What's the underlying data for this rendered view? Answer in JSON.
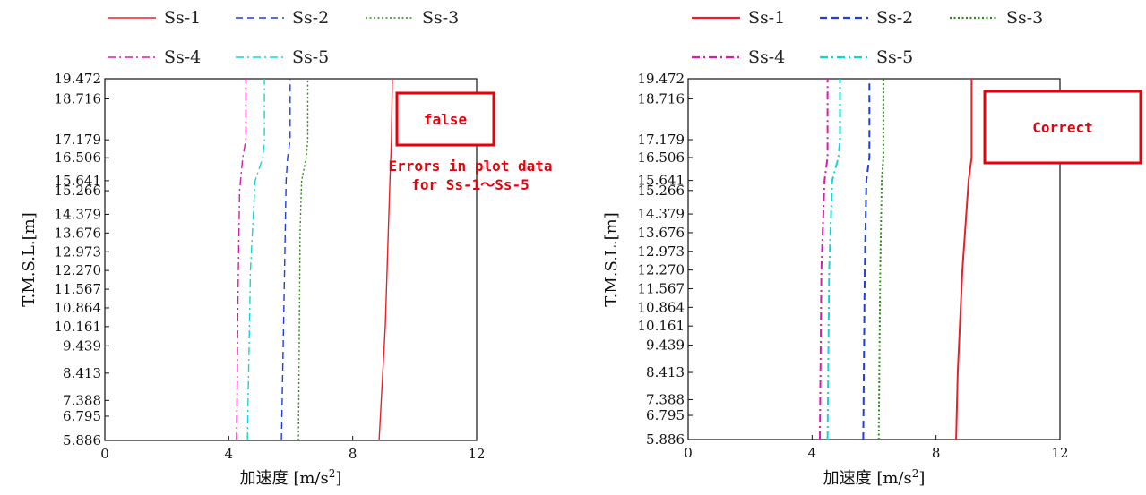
{
  "chart_data": [
    {
      "type": "line",
      "title": "",
      "xlabel_main": "加速度",
      "xlabel_unit": "[m/s",
      "xlabel_exp": "2",
      "xlabel_close": "]",
      "ylabel": "T.M.S.L.[m]",
      "xlim": [
        0,
        12
      ],
      "x_ticks": [
        0,
        4,
        8,
        12
      ],
      "ylim": [
        5.886,
        19.472
      ],
      "y_ticks": [
        19.472,
        18.716,
        17.179,
        16.506,
        15.641,
        15.266,
        14.379,
        13.676,
        12.973,
        12.27,
        11.567,
        10.864,
        10.161,
        9.439,
        8.413,
        7.388,
        6.795,
        5.886
      ],
      "y_tick_labels": [
        "19.472",
        "18.716",
        "17.179",
        "16.506",
        "15.641",
        "15.266",
        "14.379",
        "13.676",
        "12.973",
        "12.270",
        "11.567",
        "10.864",
        "10.161",
        "9.439",
        "8.413",
        "7.388",
        "6.795",
        "5.886"
      ],
      "grid": false,
      "legend": "top",
      "series": [
        {
          "name": "Ss-1",
          "color": "#e8202a",
          "style": "solid",
          "points": [
            [
              8.85,
              5.886
            ],
            [
              9.05,
              10.16
            ],
            [
              9.2,
              15.64
            ],
            [
              9.25,
              17.18
            ],
            [
              9.28,
              19.472
            ]
          ]
        },
        {
          "name": "Ss-2",
          "color": "#1f3fdc",
          "style": "dash",
          "points": [
            [
              5.7,
              5.886
            ],
            [
              5.8,
              12.27
            ],
            [
              5.85,
              15.64
            ],
            [
              5.9,
              16.51
            ],
            [
              5.98,
              17.18
            ],
            [
              5.98,
              19.472
            ]
          ]
        },
        {
          "name": "Ss-3",
          "color": "#2e8b1a",
          "style": "dot",
          "points": [
            [
              6.25,
              5.886
            ],
            [
              6.3,
              13.68
            ],
            [
              6.35,
              15.64
            ],
            [
              6.5,
              16.51
            ],
            [
              6.55,
              17.18
            ],
            [
              6.55,
              19.472
            ]
          ]
        },
        {
          "name": "Ss-4",
          "color": "#d81ba8",
          "style": "dashdot",
          "points": [
            [
              4.25,
              5.886
            ],
            [
              4.3,
              11.57
            ],
            [
              4.35,
              15.27
            ],
            [
              4.45,
              16.51
            ],
            [
              4.55,
              17.18
            ],
            [
              4.55,
              19.472
            ]
          ]
        },
        {
          "name": "Ss-5",
          "color": "#12d6d6",
          "style": "dashdot",
          "points": [
            [
              4.6,
              5.886
            ],
            [
              4.7,
              12.27
            ],
            [
              4.85,
              15.64
            ],
            [
              5.1,
              16.51
            ],
            [
              5.15,
              17.18
            ],
            [
              5.15,
              19.472
            ]
          ]
        }
      ],
      "annotations": {
        "box_label": "false",
        "note_line1": "Errors in plot data",
        "note_line2": "for Ss-1～Ss-5"
      }
    },
    {
      "type": "line",
      "title": "",
      "xlabel_main": "加速度",
      "xlabel_unit": "[m/s",
      "xlabel_exp": "2",
      "xlabel_close": "]",
      "ylabel": "T.M.S.L.[m]",
      "xlim": [
        0,
        12
      ],
      "x_ticks": [
        0,
        4,
        8,
        12
      ],
      "ylim": [
        5.886,
        19.472
      ],
      "y_ticks": [
        19.472,
        18.716,
        17.179,
        16.506,
        15.641,
        15.266,
        14.379,
        13.676,
        12.973,
        12.27,
        11.567,
        10.864,
        10.161,
        9.439,
        8.413,
        7.388,
        6.795,
        5.886
      ],
      "y_tick_labels": [
        "19.472",
        "18.716",
        "17.179",
        "16.506",
        "15.641",
        "15.266",
        "14.379",
        "13.676",
        "12.973",
        "12.270",
        "11.567",
        "10.864",
        "10.161",
        "9.439",
        "8.413",
        "7.388",
        "6.795",
        "5.886"
      ],
      "grid": false,
      "legend": "top",
      "series": [
        {
          "name": "Ss-1",
          "color": "#e8202a",
          "style": "solid",
          "points": [
            [
              8.65,
              5.886
            ],
            [
              8.7,
              8.41
            ],
            [
              8.85,
              12.27
            ],
            [
              9.05,
              15.64
            ],
            [
              9.15,
              16.51
            ],
            [
              9.15,
              19.472
            ]
          ]
        },
        {
          "name": "Ss-2",
          "color": "#1f3fdc",
          "style": "dash",
          "points": [
            [
              5.65,
              5.886
            ],
            [
              5.7,
              12.27
            ],
            [
              5.75,
              15.64
            ],
            [
              5.85,
              16.51
            ],
            [
              5.85,
              19.472
            ]
          ]
        },
        {
          "name": "Ss-3",
          "color": "#2e8b1a",
          "style": "dot",
          "points": [
            [
              6.15,
              5.886
            ],
            [
              6.2,
              12.27
            ],
            [
              6.25,
              15.64
            ],
            [
              6.3,
              16.51
            ],
            [
              6.3,
              19.472
            ]
          ]
        },
        {
          "name": "Ss-4",
          "color": "#d81ba8",
          "style": "dashdot",
          "points": [
            [
              4.25,
              5.886
            ],
            [
              4.3,
              12.27
            ],
            [
              4.4,
              15.64
            ],
            [
              4.5,
              16.51
            ],
            [
              4.5,
              19.472
            ]
          ]
        },
        {
          "name": "Ss-5",
          "color": "#12d6d6",
          "style": "dashdot",
          "points": [
            [
              4.5,
              5.886
            ],
            [
              4.55,
              12.27
            ],
            [
              4.65,
              15.64
            ],
            [
              4.85,
              16.51
            ],
            [
              4.9,
              17.18
            ],
            [
              4.9,
              19.472
            ]
          ]
        }
      ],
      "annotations": {
        "box_label": "Correct"
      }
    }
  ]
}
